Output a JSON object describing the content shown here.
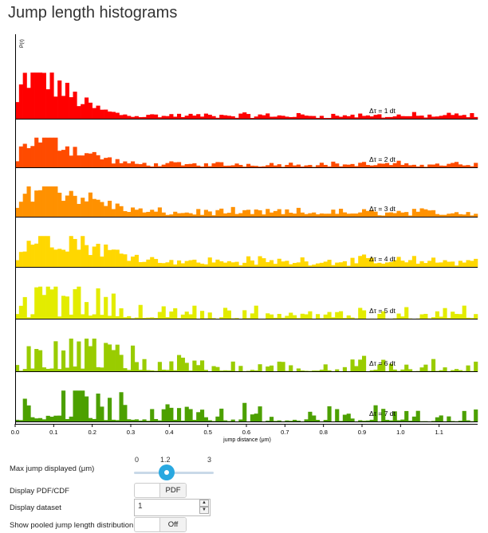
{
  "page": {
    "title": "Jump length histograms"
  },
  "chart_data": {
    "type": "bar",
    "title": "",
    "xlabel": "jump distance (μm)",
    "ylabel": "P(r)",
    "xlim": [
      0.0,
      1.2
    ],
    "xticks": [
      "0.0",
      "0.1",
      "0.2",
      "0.3",
      "0.4",
      "0.5",
      "0.6",
      "0.7",
      "0.8",
      "0.9",
      "1.0",
      "1.1"
    ],
    "panels": [
      {
        "name": "Δτ = 1 dt",
        "color": "#ff0000"
      },
      {
        "name": "Δτ = 2 dt",
        "color": "#ff4b00"
      },
      {
        "name": "Δτ = 3 dt",
        "color": "#ff9100"
      },
      {
        "name": "Δτ = 4 dt",
        "color": "#ffd700"
      },
      {
        "name": "Δτ = 5 dt",
        "color": "#e3ec00"
      },
      {
        "name": "Δτ = 6 dt",
        "color": "#99cc00"
      },
      {
        "name": "Δτ = 7 dt",
        "color": "#4ca000"
      }
    ]
  },
  "controls": {
    "max_jump": {
      "label": "Max jump displayed (μm)",
      "min": "0",
      "value": "1.2",
      "max": "3"
    },
    "pdf_cdf": {
      "label": "Display PDF/CDF",
      "value": "PDF"
    },
    "dataset": {
      "label": "Display dataset",
      "value": "1"
    },
    "pooled": {
      "label": "Show pooled jump length distribution:",
      "value": "Off"
    }
  }
}
